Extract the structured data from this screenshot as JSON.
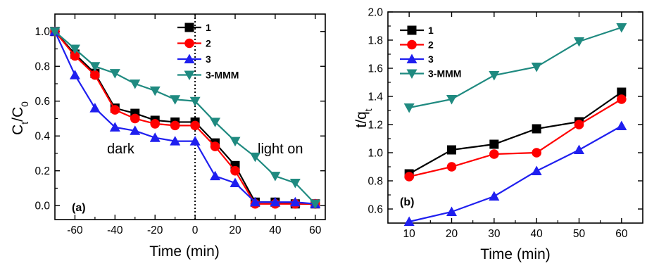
{
  "chart_data": [
    {
      "type": "line",
      "panel_label": "(a)",
      "xlabel": "Time (min)",
      "ylabel": "Ct/C0",
      "ylabel_main": "C",
      "ylabel_sub1": "t",
      "ylabel_slash": "/C",
      "ylabel_sub2": "0",
      "xlim": [
        -70,
        65
      ],
      "ylim": [
        -0.08,
        1.1
      ],
      "xticks": [
        -60,
        -40,
        -20,
        0,
        20,
        40,
        60
      ],
      "yticks": [
        0.0,
        0.2,
        0.4,
        0.6,
        0.8,
        1.0
      ],
      "ytick_labels": [
        "0.0",
        "0.2",
        "0.4",
        "0.6",
        "0.8",
        "1.0"
      ],
      "vline_x": 0,
      "annotations": [
        "dark",
        "light on"
      ],
      "legend_position": "top-center",
      "series": [
        {
          "name": "1",
          "color": "#000000",
          "marker": "square",
          "x": [
            -70,
            -60,
            -50,
            -40,
            -30,
            -20,
            -10,
            0,
            10,
            20,
            30,
            40,
            50,
            60
          ],
          "y": [
            1.0,
            0.87,
            0.76,
            0.56,
            0.53,
            0.49,
            0.48,
            0.48,
            0.36,
            0.23,
            0.02,
            0.02,
            0.01,
            0.01
          ]
        },
        {
          "name": "2",
          "color": "#ff0000",
          "marker": "circle",
          "x": [
            -70,
            -60,
            -50,
            -40,
            -30,
            -20,
            -10,
            0,
            10,
            20,
            30,
            40,
            50,
            60
          ],
          "y": [
            1.0,
            0.86,
            0.75,
            0.55,
            0.5,
            0.47,
            0.46,
            0.46,
            0.34,
            0.2,
            0.01,
            0.01,
            0.01,
            0.01
          ]
        },
        {
          "name": "3",
          "color": "#1f1fef",
          "marker": "triangle-up",
          "x": [
            -70,
            -60,
            -50,
            -40,
            -30,
            -20,
            -10,
            0,
            10,
            20,
            30,
            40,
            50,
            60
          ],
          "y": [
            1.0,
            0.75,
            0.56,
            0.45,
            0.43,
            0.39,
            0.37,
            0.37,
            0.17,
            0.13,
            0.02,
            0.02,
            0.02,
            0.01
          ]
        },
        {
          "name": "3-MMM",
          "color": "#1f8a80",
          "marker": "triangle-down",
          "x": [
            -70,
            -60,
            -50,
            -40,
            -30,
            -20,
            -10,
            0,
            10,
            20,
            30,
            40,
            50,
            60
          ],
          "y": [
            1.0,
            0.9,
            0.8,
            0.76,
            0.7,
            0.66,
            0.61,
            0.6,
            0.48,
            0.37,
            0.28,
            0.17,
            0.13,
            0.01
          ]
        }
      ]
    },
    {
      "type": "line",
      "panel_label": "(b)",
      "xlabel": "Time (min)",
      "ylabel": "t/qt",
      "ylabel_main": "t/q",
      "ylabel_sub": "t",
      "xlim": [
        5,
        65
      ],
      "ylim": [
        0.5,
        2.0
      ],
      "xticks": [
        10,
        20,
        30,
        40,
        50,
        60
      ],
      "yticks": [
        0.6,
        0.8,
        1.0,
        1.2,
        1.4,
        1.6,
        1.8,
        2.0
      ],
      "ytick_labels": [
        "0.6",
        "0.8",
        "1.0",
        "1.2",
        "1.4",
        "1.6",
        "1.8",
        "2.0"
      ],
      "legend_position": "top-left",
      "series": [
        {
          "name": "1",
          "color": "#000000",
          "marker": "square",
          "x": [
            10,
            20,
            30,
            40,
            50,
            60
          ],
          "y": [
            0.85,
            1.02,
            1.06,
            1.17,
            1.22,
            1.43
          ]
        },
        {
          "name": "2",
          "color": "#ff0000",
          "marker": "circle",
          "x": [
            10,
            20,
            30,
            40,
            50,
            60
          ],
          "y": [
            0.83,
            0.9,
            0.99,
            1.0,
            1.2,
            1.38
          ]
        },
        {
          "name": "3",
          "color": "#1f1fef",
          "marker": "triangle-up",
          "x": [
            10,
            20,
            30,
            40,
            50,
            60
          ],
          "y": [
            0.51,
            0.58,
            0.69,
            0.87,
            1.02,
            1.19
          ]
        },
        {
          "name": "3-MMM",
          "color": "#1f8a80",
          "marker": "triangle-down",
          "x": [
            10,
            20,
            30,
            40,
            50,
            60
          ],
          "y": [
            1.32,
            1.38,
            1.55,
            1.61,
            1.79,
            1.89
          ]
        }
      ]
    }
  ]
}
